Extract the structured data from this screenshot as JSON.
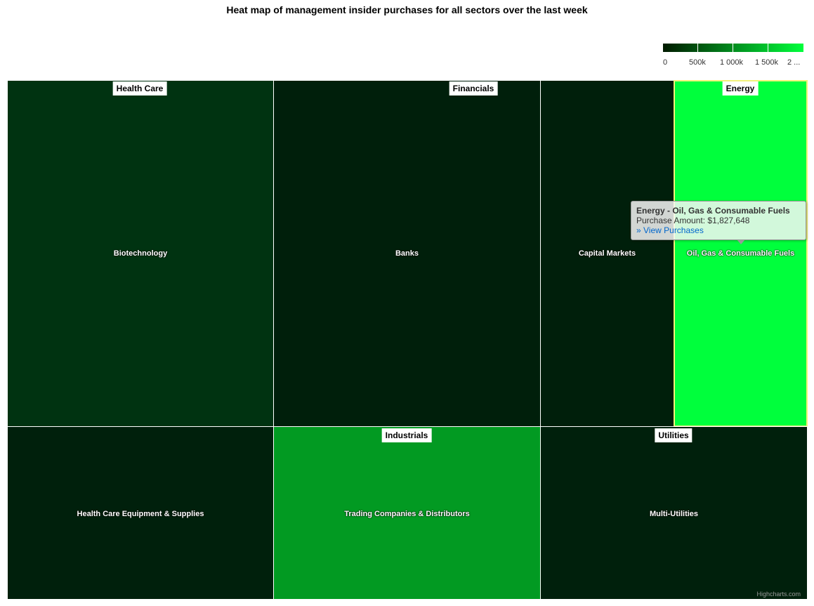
{
  "chart_data": {
    "type": "treemap",
    "title": "Heat map of management insider purchases for all sectors over the last week",
    "value_label": "Purchase Amount",
    "colorAxis": {
      "min": 0,
      "max": 2000000,
      "minColor": "#001a00",
      "maxColor": "#00ff3c",
      "tick_labels": [
        "0",
        "500k",
        "1 000k",
        "1 500k",
        "2 ..."
      ]
    },
    "sectors": [
      {
        "name": "Health Care",
        "industries": [
          "Biotechnology",
          "Health Care Equipment & Supplies"
        ]
      },
      {
        "name": "Financials",
        "industries": [
          "Banks",
          "Capital Markets"
        ]
      },
      {
        "name": "Energy",
        "industries": [
          "Oil, Gas & Consumable Fuels"
        ]
      },
      {
        "name": "Industrials",
        "industries": [
          "Trading Companies & Distributors"
        ]
      },
      {
        "name": "Utilities",
        "industries": [
          "Multi-Utilities"
        ]
      }
    ],
    "industries": [
      {
        "name": "Biotechnology",
        "sector": "Health Care",
        "color": "#003311"
      },
      {
        "name": "Health Care Equipment & Supplies",
        "sector": "Health Care",
        "color": "#00200c"
      },
      {
        "name": "Banks",
        "sector": "Financials",
        "color": "#001f0b"
      },
      {
        "name": "Capital Markets",
        "sector": "Financials",
        "color": "#001f0b"
      },
      {
        "name": "Oil, Gas & Consumable Fuels",
        "sector": "Energy",
        "color": "#00ff3c",
        "value": 1827648
      },
      {
        "name": "Trading Companies & Distributors",
        "sector": "Industrials",
        "color": "#029a22"
      },
      {
        "name": "Multi-Utilities",
        "sector": "Utilities",
        "color": "#00200c"
      }
    ],
    "tooltip": {
      "title": "Energy - Oil, Gas & Consumable Fuels",
      "amount_text": "Purchase Amount: $1,827,648",
      "link_text": "» View Purchases"
    }
  },
  "credits": "Highcharts.com"
}
